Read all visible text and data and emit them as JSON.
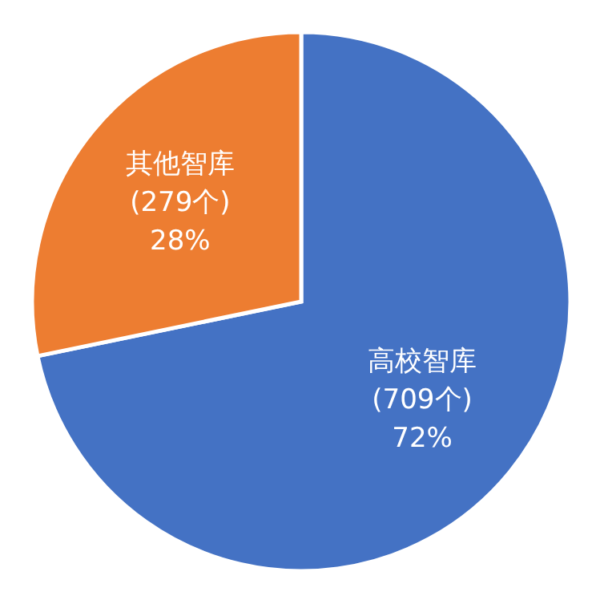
{
  "chart_data": {
    "type": "pie",
    "categories": [
      "高校智库",
      "其他智库"
    ],
    "values": [
      709,
      279
    ],
    "value_labels": [
      "(709个)\n72%",
      "(279个)\n28%"
    ],
    "colors": [
      "#4472c4",
      "#ed7d31"
    ],
    "legend": false
  }
}
